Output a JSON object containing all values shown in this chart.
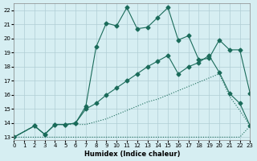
{
  "xlabel": "Humidex (Indice chaleur)",
  "bg_color": "#d6eef2",
  "grid_color": "#b0cdd4",
  "line_color": "#1a6b5a",
  "xlim": [
    0,
    23
  ],
  "ylim": [
    12.8,
    22.5
  ],
  "xticks": [
    0,
    1,
    2,
    3,
    4,
    5,
    6,
    7,
    8,
    9,
    10,
    11,
    12,
    13,
    14,
    15,
    16,
    17,
    18,
    19,
    20,
    21,
    22,
    23
  ],
  "yticks": [
    13,
    14,
    15,
    16,
    17,
    18,
    19,
    20,
    21,
    22
  ],
  "line1": {
    "x": [
      0,
      2,
      3,
      4,
      5,
      6,
      7,
      8,
      9,
      10,
      11,
      12,
      13,
      14,
      15,
      16,
      17,
      18,
      19,
      20,
      21,
      22,
      23
    ],
    "y": [
      13,
      13.8,
      13.2,
      13.9,
      13.9,
      14.0,
      15.2,
      19.4,
      21.1,
      20.9,
      22.2,
      20.7,
      20.8,
      21.5,
      22.2,
      19.9,
      20.2,
      18.5,
      18.6,
      19.9,
      19.2,
      19.2,
      16.1
    ]
  },
  "line2": {
    "x": [
      0,
      2,
      3,
      4,
      5,
      6,
      7,
      8,
      9,
      10,
      11,
      12,
      13,
      14,
      15,
      16,
      17,
      18,
      19,
      20,
      21,
      22,
      23
    ],
    "y": [
      13,
      13.8,
      13.2,
      13.9,
      13.9,
      14.0,
      15.0,
      15.4,
      16.0,
      16.5,
      17.0,
      17.5,
      18.0,
      18.4,
      18.8,
      17.5,
      18.0,
      18.3,
      18.8,
      17.6,
      16.1,
      15.4,
      13.8
    ]
  },
  "line3": {
    "x": [
      0,
      2,
      3,
      4,
      5,
      6,
      7,
      8,
      9,
      10,
      11,
      12,
      13,
      14,
      15,
      16,
      17,
      18,
      19,
      20,
      21,
      22,
      23
    ],
    "y": [
      13,
      13.8,
      13.2,
      13.9,
      13.9,
      13.9,
      13.9,
      14.1,
      14.3,
      14.6,
      14.9,
      15.2,
      15.5,
      15.7,
      16.0,
      16.3,
      16.6,
      16.9,
      17.2,
      17.5,
      15.9,
      14.9,
      13.8
    ]
  },
  "line4": {
    "x": [
      0,
      2,
      3,
      4,
      5,
      6,
      7,
      8,
      9,
      10,
      11,
      12,
      13,
      14,
      15,
      16,
      17,
      18,
      19,
      20,
      21,
      22,
      23
    ],
    "y": [
      13,
      13.0,
      13.0,
      13.0,
      13.0,
      13.0,
      13.0,
      13.0,
      13.0,
      13.0,
      13.0,
      13.0,
      13.0,
      13.0,
      13.0,
      13.0,
      13.0,
      13.0,
      13.0,
      13.0,
      13.0,
      13.0,
      13.8
    ]
  }
}
